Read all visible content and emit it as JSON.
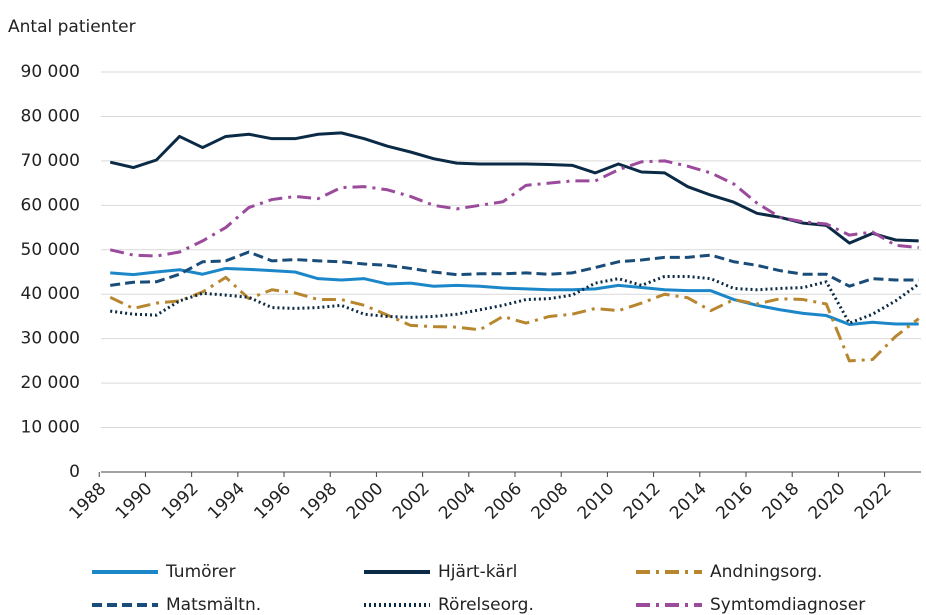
{
  "chart_data": {
    "type": "line",
    "y_axis_label": "Antal patienter",
    "x": [
      1988,
      1989,
      1990,
      1991,
      1992,
      1993,
      1994,
      1995,
      1996,
      1997,
      1998,
      1999,
      2000,
      2001,
      2002,
      2003,
      2004,
      2005,
      2006,
      2007,
      2008,
      2009,
      2010,
      2011,
      2012,
      2013,
      2014,
      2015,
      2016,
      2017,
      2018,
      2019,
      2020,
      2021,
      2022,
      2023
    ],
    "xlim": [
      1987.6,
      2023.1
    ],
    "xticks": [
      1988,
      1990,
      1992,
      1994,
      1996,
      1998,
      2000,
      2002,
      2004,
      2006,
      2008,
      2010,
      2012,
      2014,
      2016,
      2018,
      2020,
      2022
    ],
    "ylim": [
      0,
      90000
    ],
    "yticks": [
      0,
      {
        "value": 10000,
        "label": "10 000"
      },
      {
        "value": 20000,
        "label": "20 000"
      },
      {
        "value": 30000,
        "label": "30 000"
      },
      {
        "value": 40000,
        "label": "40 000"
      },
      {
        "value": 50000,
        "label": "50 000"
      },
      {
        "value": 60000,
        "label": "60 000"
      },
      {
        "value": 70000,
        "label": "70 000"
      },
      {
        "value": 80000,
        "label": "80 000"
      },
      {
        "value": 90000,
        "label": "90 000"
      }
    ],
    "grid": true,
    "legend_position": "bottom",
    "series": [
      {
        "name": "Tumörer",
        "color": "#1b87c9",
        "dash": "solid",
        "values": [
          44800,
          44400,
          45000,
          45500,
          44500,
          45800,
          45600,
          45300,
          45000,
          43500,
          43200,
          43500,
          42300,
          42500,
          41800,
          42000,
          41800,
          41400,
          41200,
          41000,
          41000,
          41200,
          42000,
          41500,
          41000,
          40800,
          40800,
          38800,
          37500,
          36500,
          35700,
          35200,
          33200,
          33700,
          33300,
          33300
        ]
      },
      {
        "name": "Hjärt-kärl",
        "color": "#0b2a45",
        "dash": "solid",
        "values": [
          69700,
          68500,
          70200,
          75500,
          73000,
          75500,
          76000,
          75000,
          75000,
          76000,
          76300,
          75000,
          73300,
          72000,
          70500,
          69500,
          69300,
          69300,
          69300,
          69200,
          69000,
          67300,
          69300,
          67500,
          67300,
          64200,
          62300,
          60700,
          58200,
          57300,
          56000,
          55500,
          51500,
          53700,
          52200,
          52000
        ]
      },
      {
        "name": "Andningsorg.",
        "color": "#b8862e",
        "dash": "dashdot",
        "values": [
          39300,
          36800,
          38000,
          38500,
          40500,
          43800,
          39000,
          41000,
          40300,
          38800,
          38800,
          37500,
          35300,
          33000,
          32700,
          32600,
          32000,
          35000,
          33500,
          35000,
          35500,
          36800,
          36300,
          38000,
          40000,
          39200,
          36300,
          38800,
          37800,
          39000,
          38800,
          37800,
          25000,
          25300,
          30500,
          34500
        ]
      },
      {
        "name": "Matsmältn.",
        "color": "#1a4c7a",
        "dash": "dashed",
        "values": [
          42000,
          42700,
          42800,
          44500,
          47300,
          47500,
          49500,
          47500,
          47800,
          47500,
          47300,
          46800,
          46500,
          45800,
          45000,
          44400,
          44600,
          44600,
          44800,
          44500,
          44800,
          46000,
          47300,
          47700,
          48300,
          48300,
          48800,
          47300,
          46500,
          45300,
          44500,
          44500,
          41800,
          43500,
          43200,
          43200
        ]
      },
      {
        "name": "Rörelseorg.",
        "color": "#0b2a45",
        "dash": "dotted",
        "values": [
          36200,
          35500,
          35300,
          38500,
          40200,
          39800,
          39300,
          37000,
          36800,
          37000,
          37500,
          35500,
          35000,
          34800,
          35000,
          35500,
          36500,
          37500,
          38800,
          39000,
          39800,
          42500,
          43500,
          42000,
          44000,
          44000,
          43500,
          41300,
          41000,
          41300,
          41500,
          42800,
          33500,
          35500,
          38500,
          42300
        ]
      },
      {
        "name": "Symtomdiagnoser",
        "color": "#9b4a9c",
        "dash": "dashdot",
        "values": [
          50000,
          48800,
          48600,
          49500,
          52000,
          55000,
          59500,
          61300,
          62000,
          61500,
          64000,
          64200,
          63500,
          62000,
          60000,
          59200,
          60000,
          60800,
          64500,
          65000,
          65500,
          65500,
          68000,
          69800,
          70000,
          68800,
          67300,
          64800,
          60500,
          57300,
          56300,
          55800,
          53300,
          54000,
          51000,
          50500
        ]
      }
    ]
  }
}
